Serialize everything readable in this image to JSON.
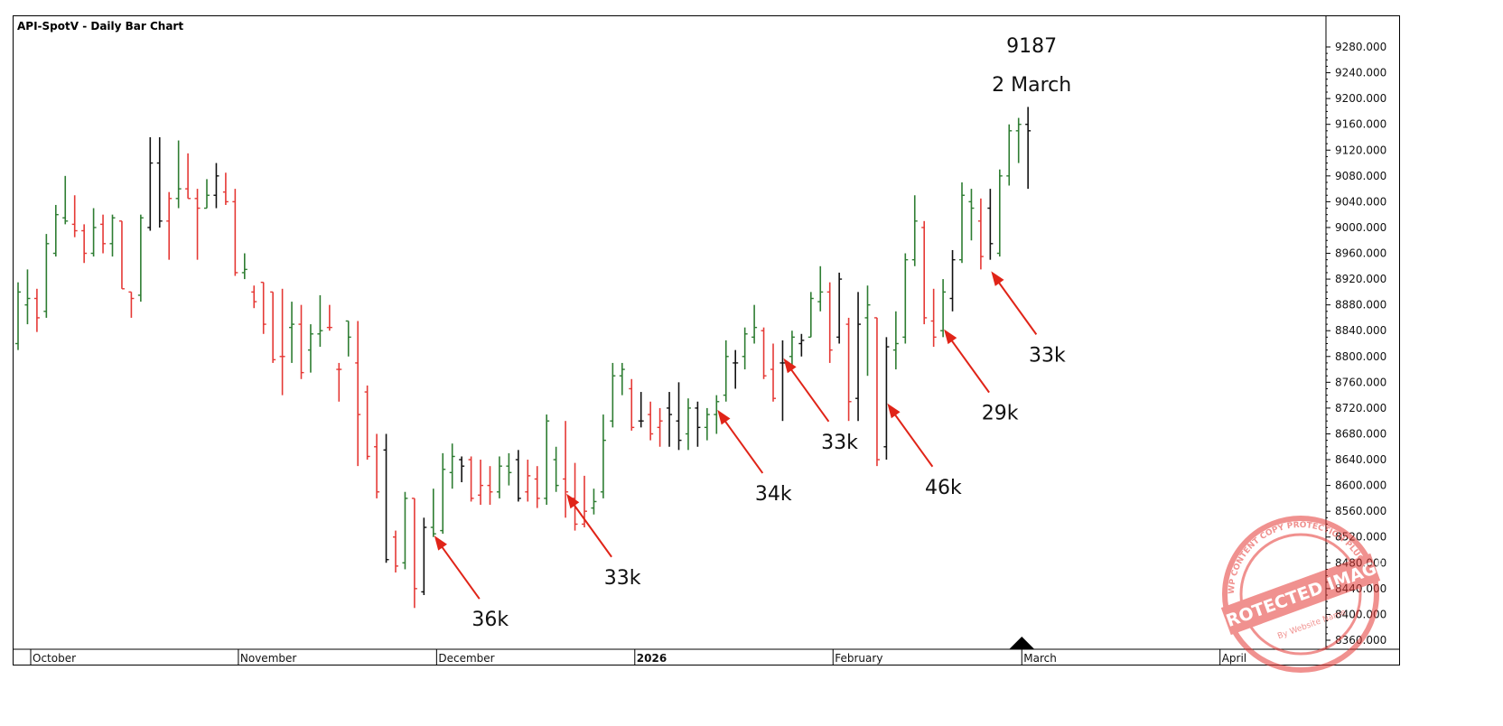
{
  "chart_data": {
    "type": "ohlc",
    "title": "API-SpotV - Daily Bar Chart",
    "ylim": [
      8330,
      9305
    ],
    "y_ticks": [
      "9280.000",
      "9240.000",
      "9200.000",
      "9160.000",
      "9120.000",
      "9080.000",
      "9040.000",
      "9000.000",
      "8960.000",
      "8920.000",
      "8880.000",
      "8840.000",
      "8800.000",
      "8760.000",
      "8720.000",
      "8680.000",
      "8640.000",
      "8600.000",
      "8560.000",
      "8520.000",
      "8480.000",
      "8440.000",
      "8400.000",
      "8360.000"
    ],
    "x_ticks": [
      {
        "label": "October",
        "bar_index": 0,
        "bold": false
      },
      {
        "label": "November",
        "bar_index": 22,
        "bold": false
      },
      {
        "label": "December",
        "bar_index": 43,
        "bold": false
      },
      {
        "label": "2026",
        "bar_index": 64,
        "bold": true
      },
      {
        "label": "February",
        "bar_index": 85,
        "bold": false
      },
      {
        "label": "March",
        "bar_index": 105,
        "bold": false
      },
      {
        "label": "April",
        "bar_index": 126,
        "bold": false
      }
    ],
    "colors": {
      "up": "#2e7d32",
      "down": "#e53935",
      "neutral": "#111111",
      "arrow": "#e02418"
    },
    "bars": [
      {
        "o": 8820,
        "h": 8915,
        "l": 8810,
        "c": 8900,
        "d": "up"
      },
      {
        "o": 8880,
        "h": 8935,
        "l": 8850,
        "c": 8890,
        "d": "up"
      },
      {
        "o": 8890,
        "h": 8905,
        "l": 8838,
        "c": 8860,
        "d": "down"
      },
      {
        "o": 8870,
        "h": 8990,
        "l": 8860,
        "c": 8975,
        "d": "up"
      },
      {
        "o": 8960,
        "h": 9035,
        "l": 8955,
        "c": 9020,
        "d": "up"
      },
      {
        "o": 9015,
        "h": 9080,
        "l": 9005,
        "c": 9010,
        "d": "up"
      },
      {
        "o": 9005,
        "h": 9050,
        "l": 8985,
        "c": 8995,
        "d": "down"
      },
      {
        "o": 8995,
        "h": 9005,
        "l": 8945,
        "c": 8960,
        "d": "down"
      },
      {
        "o": 8960,
        "h": 9030,
        "l": 8955,
        "c": 9000,
        "d": "up"
      },
      {
        "o": 9005,
        "h": 9020,
        "l": 8960,
        "c": 8975,
        "d": "down"
      },
      {
        "o": 8975,
        "h": 9020,
        "l": 8955,
        "c": 9015,
        "d": "up"
      },
      {
        "o": 9010,
        "h": 9010,
        "l": 8905,
        "c": 8905,
        "d": "down"
      },
      {
        "o": 8900,
        "h": 8900,
        "l": 8860,
        "c": 8890,
        "d": "down"
      },
      {
        "o": 8895,
        "h": 9020,
        "l": 8885,
        "c": 9015,
        "d": "up"
      },
      {
        "o": 9000,
        "h": 9140,
        "l": 8995,
        "c": 9100,
        "d": "neutral"
      },
      {
        "o": 9100,
        "h": 9140,
        "l": 9000,
        "c": 9010,
        "d": "neutral"
      },
      {
        "o": 9010,
        "h": 9055,
        "l": 8950,
        "c": 9045,
        "d": "down"
      },
      {
        "o": 9045,
        "h": 9135,
        "l": 9030,
        "c": 9060,
        "d": "up"
      },
      {
        "o": 9060,
        "h": 9115,
        "l": 9045,
        "c": 9045,
        "d": "down"
      },
      {
        "o": 9045,
        "h": 9060,
        "l": 8950,
        "c": 9030,
        "d": "down"
      },
      {
        "o": 9030,
        "h": 9075,
        "l": 9030,
        "c": 9050,
        "d": "up"
      },
      {
        "o": 9050,
        "h": 9100,
        "l": 9030,
        "c": 9080,
        "d": "neutral"
      },
      {
        "o": 9055,
        "h": 9085,
        "l": 9035,
        "c": 9040,
        "d": "down"
      },
      {
        "o": 9040,
        "h": 9060,
        "l": 8925,
        "c": 8930,
        "d": "down"
      },
      {
        "o": 8930,
        "h": 8960,
        "l": 8920,
        "c": 8935,
        "d": "up"
      },
      {
        "o": 8900,
        "h": 8910,
        "l": 8875,
        "c": 8885,
        "d": "down"
      },
      {
        "o": 8915,
        "h": 8915,
        "l": 8835,
        "c": 8850,
        "d": "down"
      },
      {
        "o": 8900,
        "h": 8900,
        "l": 8790,
        "c": 8795,
        "d": "down"
      },
      {
        "o": 8800,
        "h": 8905,
        "l": 8740,
        "c": 8800,
        "d": "down"
      },
      {
        "o": 8845,
        "h": 8885,
        "l": 8790,
        "c": 8850,
        "d": "up"
      },
      {
        "o": 8850,
        "h": 8880,
        "l": 8765,
        "c": 8775,
        "d": "down"
      },
      {
        "o": 8810,
        "h": 8850,
        "l": 8775,
        "c": 8835,
        "d": "up"
      },
      {
        "o": 8835,
        "h": 8895,
        "l": 8815,
        "c": 8840,
        "d": "up"
      },
      {
        "o": 8845,
        "h": 8880,
        "l": 8840,
        "c": 8845,
        "d": "down"
      },
      {
        "o": 8780,
        "h": 8790,
        "l": 8730,
        "c": 8780,
        "d": "down"
      },
      {
        "o": 8855,
        "h": 8855,
        "l": 8800,
        "c": 8830,
        "d": "up"
      },
      {
        "o": 8790,
        "h": 8855,
        "l": 8630,
        "c": 8710,
        "d": "down"
      },
      {
        "o": 8745,
        "h": 8755,
        "l": 8640,
        "c": 8645,
        "d": "down"
      },
      {
        "o": 8660,
        "h": 8680,
        "l": 8580,
        "c": 8590,
        "d": "down"
      },
      {
        "o": 8655,
        "h": 8680,
        "l": 8480,
        "c": 8485,
        "d": "neutral"
      },
      {
        "o": 8520,
        "h": 8530,
        "l": 8465,
        "c": 8475,
        "d": "down"
      },
      {
        "o": 8480,
        "h": 8590,
        "l": 8470,
        "c": 8580,
        "d": "up"
      },
      {
        "o": 8580,
        "h": 8580,
        "l": 8410,
        "c": 8440,
        "d": "down"
      },
      {
        "o": 8435,
        "h": 8550,
        "l": 8430,
        "c": 8535,
        "d": "neutral"
      },
      {
        "o": 8535,
        "h": 8595,
        "l": 8520,
        "c": 8525,
        "d": "up"
      },
      {
        "o": 8530,
        "h": 8650,
        "l": 8525,
        "c": 8625,
        "d": "up"
      },
      {
        "o": 8620,
        "h": 8665,
        "l": 8595,
        "c": 8645,
        "d": "up"
      },
      {
        "o": 8640,
        "h": 8645,
        "l": 8605,
        "c": 8630,
        "d": "neutral"
      },
      {
        "o": 8640,
        "h": 8645,
        "l": 8575,
        "c": 8580,
        "d": "down"
      },
      {
        "o": 8585,
        "h": 8640,
        "l": 8570,
        "c": 8600,
        "d": "red"
      },
      {
        "o": 8600,
        "h": 8630,
        "l": 8570,
        "c": 8590,
        "d": "red"
      },
      {
        "o": 8590,
        "h": 8645,
        "l": 8580,
        "c": 8630,
        "d": "up"
      },
      {
        "o": 8630,
        "h": 8650,
        "l": 8600,
        "c": 8620,
        "d": "up"
      },
      {
        "o": 8640,
        "h": 8655,
        "l": 8575,
        "c": 8580,
        "d": "neutral"
      },
      {
        "o": 8590,
        "h": 8640,
        "l": 8575,
        "c": 8615,
        "d": "down"
      },
      {
        "o": 8610,
        "h": 8630,
        "l": 8565,
        "c": 8580,
        "d": "down"
      },
      {
        "o": 8580,
        "h": 8710,
        "l": 8570,
        "c": 8700,
        "d": "up"
      },
      {
        "o": 8640,
        "h": 8660,
        "l": 8590,
        "c": 8600,
        "d": "up"
      },
      {
        "o": 8610,
        "h": 8700,
        "l": 8550,
        "c": 8590,
        "d": "down"
      },
      {
        "o": 8580,
        "h": 8635,
        "l": 8530,
        "c": 8540,
        "d": "down"
      },
      {
        "o": 8540,
        "h": 8615,
        "l": 8535,
        "c": 8560,
        "d": "down"
      },
      {
        "o": 8565,
        "h": 8595,
        "l": 8555,
        "c": 8575,
        "d": "up"
      },
      {
        "o": 8590,
        "h": 8710,
        "l": 8580,
        "c": 8670,
        "d": "up"
      },
      {
        "o": 8700,
        "h": 8790,
        "l": 8690,
        "c": 8770,
        "d": "up"
      },
      {
        "o": 8770,
        "h": 8790,
        "l": 8740,
        "c": 8780,
        "d": "up"
      },
      {
        "o": 8750,
        "h": 8765,
        "l": 8685,
        "c": 8690,
        "d": "down"
      },
      {
        "o": 8700,
        "h": 8745,
        "l": 8690,
        "c": 8700,
        "d": "neutral"
      },
      {
        "o": 8710,
        "h": 8730,
        "l": 8670,
        "c": 8680,
        "d": "down"
      },
      {
        "o": 8690,
        "h": 8720,
        "l": 8660,
        "c": 8700,
        "d": "down"
      },
      {
        "o": 8720,
        "h": 8745,
        "l": 8660,
        "c": 8710,
        "d": "neutral"
      },
      {
        "o": 8700,
        "h": 8760,
        "l": 8655,
        "c": 8670,
        "d": "neutral"
      },
      {
        "o": 8680,
        "h": 8735,
        "l": 8655,
        "c": 8720,
        "d": "up"
      },
      {
        "o": 8720,
        "h": 8730,
        "l": 8660,
        "c": 8690,
        "d": "neutral"
      },
      {
        "o": 8690,
        "h": 8720,
        "l": 8670,
        "c": 8710,
        "d": "up"
      },
      {
        "o": 8710,
        "h": 8740,
        "l": 8680,
        "c": 8730,
        "d": "up"
      },
      {
        "o": 8740,
        "h": 8825,
        "l": 8730,
        "c": 8800,
        "d": "up"
      },
      {
        "o": 8790,
        "h": 8810,
        "l": 8750,
        "c": 8790,
        "d": "neutral"
      },
      {
        "o": 8800,
        "h": 8845,
        "l": 8780,
        "c": 8835,
        "d": "up"
      },
      {
        "o": 8830,
        "h": 8880,
        "l": 8820,
        "c": 8845,
        "d": "up"
      },
      {
        "o": 8840,
        "h": 8845,
        "l": 8765,
        "c": 8770,
        "d": "down"
      },
      {
        "o": 8780,
        "h": 8820,
        "l": 8730,
        "c": 8735,
        "d": "down"
      },
      {
        "o": 8790,
        "h": 8825,
        "l": 8700,
        "c": 8790,
        "d": "neutral"
      },
      {
        "o": 8800,
        "h": 8840,
        "l": 8780,
        "c": 8830,
        "d": "up"
      },
      {
        "o": 8820,
        "h": 8835,
        "l": 8800,
        "c": 8825,
        "d": "neutral"
      },
      {
        "o": 8830,
        "h": 8900,
        "l": 8830,
        "c": 8890,
        "d": "up"
      },
      {
        "o": 8885,
        "h": 8940,
        "l": 8870,
        "c": 8900,
        "d": "up"
      },
      {
        "o": 8900,
        "h": 8915,
        "l": 8790,
        "c": 8810,
        "d": "down"
      },
      {
        "o": 8830,
        "h": 8930,
        "l": 8820,
        "c": 8920,
        "d": "neutral"
      },
      {
        "o": 8850,
        "h": 8860,
        "l": 8700,
        "c": 8730,
        "d": "down"
      },
      {
        "o": 8735,
        "h": 8900,
        "l": 8700,
        "c": 8850,
        "d": "neutral"
      },
      {
        "o": 8860,
        "h": 8910,
        "l": 8770,
        "c": 8880,
        "d": "up"
      },
      {
        "o": 8860,
        "h": 8860,
        "l": 8630,
        "c": 8640,
        "d": "down"
      },
      {
        "o": 8660,
        "h": 8830,
        "l": 8640,
        "c": 8815,
        "d": "neutral"
      },
      {
        "o": 8810,
        "h": 8870,
        "l": 8780,
        "c": 8820,
        "d": "up"
      },
      {
        "o": 8830,
        "h": 8960,
        "l": 8820,
        "c": 8950,
        "d": "up"
      },
      {
        "o": 8950,
        "h": 9050,
        "l": 8940,
        "c": 9010,
        "d": "up"
      },
      {
        "o": 9000,
        "h": 9010,
        "l": 8850,
        "c": 8860,
        "d": "down"
      },
      {
        "o": 8855,
        "h": 8905,
        "l": 8815,
        "c": 8830,
        "d": "down"
      },
      {
        "o": 8840,
        "h": 8920,
        "l": 8830,
        "c": 8900,
        "d": "up"
      },
      {
        "o": 8890,
        "h": 8965,
        "l": 8870,
        "c": 8950,
        "d": "neutral"
      },
      {
        "o": 8950,
        "h": 9070,
        "l": 8945,
        "c": 9050,
        "d": "up"
      },
      {
        "o": 9040,
        "h": 9060,
        "l": 8980,
        "c": 9030,
        "d": "up"
      },
      {
        "o": 9010,
        "h": 9045,
        "l": 8935,
        "c": 8955,
        "d": "down"
      },
      {
        "o": 9030,
        "h": 9060,
        "l": 8950,
        "c": 8975,
        "d": "neutral"
      },
      {
        "o": 8960,
        "h": 9090,
        "l": 8955,
        "c": 9080,
        "d": "up"
      },
      {
        "o": 9080,
        "h": 9160,
        "l": 9065,
        "c": 9150,
        "d": "up"
      },
      {
        "o": 9150,
        "h": 9170,
        "l": 9100,
        "c": 9160,
        "d": "up"
      },
      {
        "o": 9160,
        "h": 9187,
        "l": 9060,
        "c": 9150,
        "d": "neutral"
      }
    ],
    "annotations": [
      {
        "label": "36k",
        "bar_index": 44,
        "tip_price": 8525
      },
      {
        "label": "33k",
        "bar_index": 58,
        "tip_price": 8590
      },
      {
        "label": "34k",
        "bar_index": 74,
        "tip_price": 8720
      },
      {
        "label": "33k",
        "bar_index": 81,
        "tip_price": 8800
      },
      {
        "label": "46k",
        "bar_index": 92,
        "tip_price": 8730
      },
      {
        "label": "29k",
        "bar_index": 98,
        "tip_price": 8845
      },
      {
        "label": "33k",
        "bar_index": 103,
        "tip_price": 8935
      }
    ],
    "top_label_value": "9187",
    "top_label_date": "2 March"
  },
  "stamp": {
    "text_main": "PROTECTED IMAGE",
    "text_ring": "WP CONTENT COPY PROTECTION PLUGIN",
    "text_sub": "By Website Name"
  }
}
